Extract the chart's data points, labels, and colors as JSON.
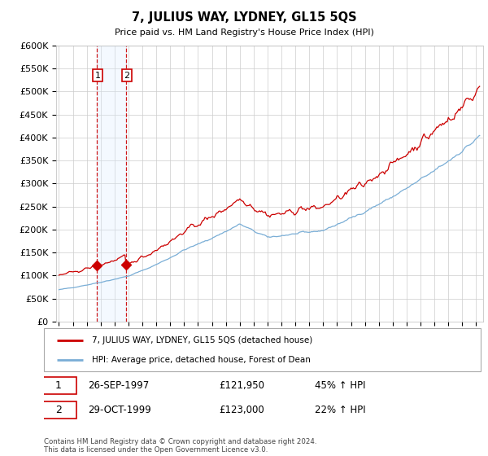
{
  "title": "7, JULIUS WAY, LYDNEY, GL15 5QS",
  "subtitle": "Price paid vs. HM Land Registry's House Price Index (HPI)",
  "ylim": [
    0,
    600000
  ],
  "yticks": [
    0,
    50000,
    100000,
    150000,
    200000,
    250000,
    300000,
    350000,
    400000,
    450000,
    500000,
    550000,
    600000
  ],
  "xlim_start": 1994.8,
  "xlim_end": 2025.5,
  "line1_color": "#cc0000",
  "line2_color": "#7aaed6",
  "marker_color": "#cc0000",
  "vline_color": "#cc0000",
  "vline_fill": "#ddeeff",
  "transaction1_x": 1997.74,
  "transaction1_y": 121950,
  "transaction1_label": "1",
  "transaction1_date": "26-SEP-1997",
  "transaction1_price": "£121,950",
  "transaction1_hpi": "45% ↑ HPI",
  "transaction2_x": 1999.83,
  "transaction2_y": 123000,
  "transaction2_label": "2",
  "transaction2_date": "29-OCT-1999",
  "transaction2_price": "£123,000",
  "transaction2_hpi": "22% ↑ HPI",
  "legend_line1": "7, JULIUS WAY, LYDNEY, GL15 5QS (detached house)",
  "legend_line2": "HPI: Average price, detached house, Forest of Dean",
  "footnote": "Contains HM Land Registry data © Crown copyright and database right 2024.\nThis data is licensed under the Open Government Licence v3.0.",
  "grid_color": "#cccccc",
  "bg_color": "#ffffff"
}
